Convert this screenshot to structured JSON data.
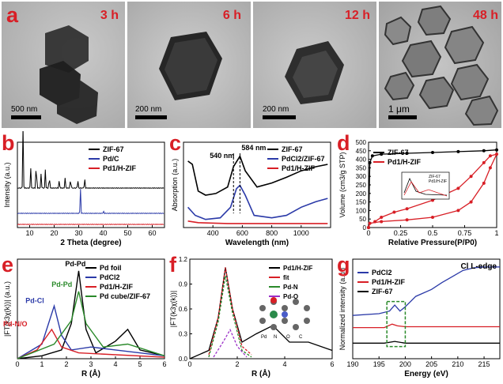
{
  "panels": {
    "a": {
      "label": "a",
      "images": [
        {
          "time": "3 h",
          "scale": "500 nm"
        },
        {
          "time": "6 h",
          "scale": "200 nm"
        },
        {
          "time": "12 h",
          "scale": "200 nm"
        },
        {
          "time": "48 h",
          "scale": "1 μm"
        }
      ]
    },
    "b": {
      "label": "b"
    },
    "c": {
      "label": "c"
    },
    "d": {
      "label": "d"
    },
    "e": {
      "label": "e"
    },
    "f": {
      "label": "f"
    },
    "g": {
      "label": "g"
    }
  },
  "colors": {
    "black": "#000000",
    "blue": "#2b3aa8",
    "red": "#d81f26",
    "green": "#2a8a2a",
    "purple": "#9b30c8",
    "label_red": "#d81f26"
  },
  "chart_data": [
    {
      "id": "b",
      "type": "line",
      "xlabel": "2 Theta (degree)",
      "ylabel": "Intensity (a.u.)",
      "xlim": [
        5,
        65
      ],
      "xticks": [
        10,
        20,
        30,
        40,
        50,
        60
      ],
      "legend": [
        "ZIF-67",
        "Pd/C",
        "Pd1/H-ZIF"
      ],
      "series": [
        {
          "name": "ZIF-67",
          "color": "#000000",
          "peaks": [
            [
              7.3,
              1.0
            ],
            [
              10.4,
              0.35
            ],
            [
              12.7,
              0.55
            ],
            [
              14.7,
              0.25
            ],
            [
              16.4,
              0.3
            ],
            [
              18.0,
              0.25
            ],
            [
              22.1,
              0.15
            ],
            [
              24.5,
              0.18
            ],
            [
              26.7,
              0.2
            ],
            [
              29.6,
              0.15
            ],
            [
              32.4,
              0.18
            ]
          ]
        },
        {
          "name": "Pd/C",
          "color": "#2b3aa8",
          "peaks": [
            [
              30.7,
              0.55
            ],
            [
              40.1,
              0.05
            ]
          ]
        },
        {
          "name": "Pd1/H-ZIF",
          "color": "#d81f26",
          "peaks": []
        }
      ]
    },
    {
      "id": "c",
      "type": "line",
      "xlabel": "Wavelength (nm)",
      "ylabel": "Absorption (a.u.)",
      "xlim": [
        200,
        1200
      ],
      "xticks": [
        400,
        600,
        800,
        1000
      ],
      "annotations": [
        "584 nm",
        "540 nm"
      ],
      "legend": [
        "ZIF-67",
        "PdCl2/ZIF-67",
        "Pd1/H-ZIF"
      ],
      "series": [
        {
          "name": "ZIF-67",
          "color": "#000000",
          "points": [
            [
              230,
              0.82
            ],
            [
              260,
              0.78
            ],
            [
              300,
              0.45
            ],
            [
              350,
              0.4
            ],
            [
              420,
              0.42
            ],
            [
              500,
              0.5
            ],
            [
              540,
              0.75
            ],
            [
              584,
              0.88
            ],
            [
              620,
              0.7
            ],
            [
              700,
              0.5
            ],
            [
              800,
              0.55
            ],
            [
              900,
              0.62
            ],
            [
              1000,
              0.7
            ],
            [
              1100,
              0.75
            ],
            [
              1180,
              0.78
            ]
          ]
        },
        {
          "name": "PdCl2/ZIF-67",
          "color": "#2b3aa8",
          "points": [
            [
              230,
              0.25
            ],
            [
              280,
              0.15
            ],
            [
              350,
              0.1
            ],
            [
              450,
              0.12
            ],
            [
              520,
              0.25
            ],
            [
              560,
              0.48
            ],
            [
              584,
              0.52
            ],
            [
              620,
              0.4
            ],
            [
              680,
              0.15
            ],
            [
              800,
              0.12
            ],
            [
              900,
              0.15
            ],
            [
              1000,
              0.25
            ],
            [
              1100,
              0.32
            ],
            [
              1180,
              0.36
            ]
          ]
        },
        {
          "name": "Pd1/H-ZIF",
          "color": "#d81f26",
          "points": [
            [
              230,
              0.08
            ],
            [
              300,
              0.06
            ],
            [
              500,
              0.05
            ],
            [
              800,
              0.05
            ],
            [
              1180,
              0.05
            ]
          ]
        }
      ]
    },
    {
      "id": "d",
      "type": "line",
      "xlabel": "Relative Pressure(P/P0)",
      "ylabel": "Volume (cm3/g STP)",
      "xlim": [
        0,
        1.0
      ],
      "ylim": [
        0,
        500
      ],
      "xticks": [
        0.0,
        0.25,
        0.5,
        0.75,
        1.0
      ],
      "yticks": [
        0,
        50,
        100,
        150,
        200,
        250,
        300,
        350,
        400,
        450,
        500
      ],
      "legend": [
        "ZIF-67",
        "Pd1/H-ZIF"
      ],
      "series": [
        {
          "name": "ZIF-67",
          "color": "#000000",
          "points": [
            [
              0.0,
              0
            ],
            [
              0.01,
              380
            ],
            [
              0.03,
              420
            ],
            [
              0.1,
              430
            ],
            [
              0.3,
              435
            ],
            [
              0.5,
              440
            ],
            [
              0.7,
              445
            ],
            [
              0.9,
              450
            ],
            [
              1.0,
              455
            ]
          ]
        },
        {
          "name": "Pd1/H-ZIF",
          "color": "#d81f26",
          "points": [
            [
              0.0,
              0
            ],
            [
              0.01,
              25
            ],
            [
              0.1,
              35
            ],
            [
              0.3,
              45
            ],
            [
              0.5,
              60
            ],
            [
              0.7,
              100
            ],
            [
              0.8,
              150
            ],
            [
              0.9,
              260
            ],
            [
              0.95,
              350
            ],
            [
              1.0,
              430
            ],
            [
              0.95,
              420
            ],
            [
              0.9,
              380
            ],
            [
              0.8,
              300
            ],
            [
              0.7,
              230
            ],
            [
              0.5,
              160
            ],
            [
              0.3,
              110
            ],
            [
              0.2,
              90
            ],
            [
              0.1,
              60
            ],
            [
              0.05,
              35
            ]
          ]
        }
      ],
      "inset_legend": [
        "ZIF-67",
        "Pd1/H-ZIF"
      ]
    },
    {
      "id": "e",
      "type": "line",
      "xlabel": "R (Å)",
      "ylabel": "|FT(k3χ(k))| (a.u.)",
      "xlim": [
        0,
        6
      ],
      "xticks": [
        0,
        1,
        2,
        3,
        4,
        5,
        6
      ],
      "legend": [
        "Pd foil",
        "PdCl2",
        "Pd1/H-ZIF",
        "Pd cube/ZIF-67"
      ],
      "annotations": [
        "Pd-Pd",
        "Pd-Pd",
        "Pd-Cl",
        "Pd-N/O"
      ],
      "series": [
        {
          "name": "Pd foil",
          "color": "#000000",
          "points": [
            [
              0,
              0
            ],
            [
              1,
              0.1
            ],
            [
              1.8,
              0.3
            ],
            [
              2.2,
              1.2
            ],
            [
              2.5,
              3.0
            ],
            [
              2.8,
              1.0
            ],
            [
              3.2,
              0.2
            ],
            [
              4.0,
              0.6
            ],
            [
              4.5,
              1.0
            ],
            [
              5.0,
              0.3
            ],
            [
              6,
              0.1
            ]
          ]
        },
        {
          "name": "PdCl2",
          "color": "#2b3aa8",
          "points": [
            [
              0,
              0
            ],
            [
              1.0,
              0.5
            ],
            [
              1.5,
              1.8
            ],
            [
              1.8,
              0.8
            ],
            [
              2.2,
              0.3
            ],
            [
              3.0,
              0.4
            ],
            [
              4.0,
              0.3
            ],
            [
              6,
              0.1
            ]
          ]
        },
        {
          "name": "Pd1/H-ZIF",
          "color": "#d81f26",
          "points": [
            [
              0,
              0
            ],
            [
              0.8,
              0.3
            ],
            [
              1.4,
              1.0
            ],
            [
              1.8,
              0.4
            ],
            [
              2.5,
              0.2
            ],
            [
              6,
              0.05
            ]
          ]
        },
        {
          "name": "Pd cube/ZIF-67",
          "color": "#2a8a2a",
          "points": [
            [
              0,
              0
            ],
            [
              1.5,
              0.5
            ],
            [
              2.2,
              1.3
            ],
            [
              2.5,
              2.3
            ],
            [
              2.8,
              1.2
            ],
            [
              3.5,
              0.4
            ],
            [
              4.5,
              0.5
            ],
            [
              6,
              0.1
            ]
          ]
        }
      ]
    },
    {
      "id": "f",
      "type": "line",
      "xlabel": "R (Å)",
      "ylabel": "|FT(k3χ(k))|",
      "xlim": [
        0,
        6
      ],
      "ylim": [
        0,
        1.2
      ],
      "xticks": [
        0,
        2,
        4,
        6
      ],
      "yticks": [
        0.0,
        0.3,
        0.6,
        0.9,
        1.2
      ],
      "legend": [
        "Pd1/H-ZIF",
        "fit",
        "Pd-N",
        "Pd-O"
      ],
      "structure_legend": [
        "Pd",
        "N",
        "O",
        "C"
      ],
      "series": [
        {
          "name": "Pd1/H-ZIF",
          "color": "#000000",
          "points": [
            [
              0,
              0
            ],
            [
              0.8,
              0.1
            ],
            [
              1.2,
              0.5
            ],
            [
              1.5,
              1.1
            ],
            [
              1.8,
              0.6
            ],
            [
              2.2,
              0.2
            ],
            [
              2.8,
              0.3
            ],
            [
              3.5,
              0.4
            ],
            [
              4.2,
              0.2
            ],
            [
              5.0,
              0.2
            ],
            [
              6,
              0.1
            ]
          ]
        },
        {
          "name": "fit",
          "color": "#d81f26",
          "points": [
            [
              0.8,
              0.05
            ],
            [
              1.2,
              0.5
            ],
            [
              1.5,
              1.1
            ],
            [
              1.8,
              0.6
            ],
            [
              2.2,
              0.15
            ],
            [
              2.6,
              0.05
            ]
          ]
        },
        {
          "name": "Pd-N",
          "color": "#2a8a2a",
          "points": [
            [
              0.8,
              0.02
            ],
            [
              1.2,
              0.45
            ],
            [
              1.5,
              1.0
            ],
            [
              1.8,
              0.55
            ],
            [
              2.2,
              0.1
            ],
            [
              2.6,
              0.02
            ]
          ]
        },
        {
          "name": "Pd-O",
          "color": "#9b30c8",
          "points": [
            [
              1.0,
              0.02
            ],
            [
              1.4,
              0.2
            ],
            [
              1.7,
              0.35
            ],
            [
              2.0,
              0.15
            ],
            [
              2.4,
              0.02
            ]
          ]
        }
      ]
    },
    {
      "id": "g",
      "type": "line",
      "title": "Cl L-edge",
      "xlabel": "Energy (eV)",
      "ylabel": "Normalized intensity (a.u.)",
      "xlim": [
        190,
        218
      ],
      "xticks": [
        190,
        195,
        200,
        205,
        210,
        215
      ],
      "legend": [
        "PdCl2",
        "Pd1/H-ZIF",
        "ZIF-67"
      ],
      "series": [
        {
          "name": "PdCl2",
          "color": "#2b3aa8",
          "points": [
            [
              190,
              0.5
            ],
            [
              195,
              0.52
            ],
            [
              197,
              0.55
            ],
            [
              198,
              0.62
            ],
            [
              199,
              0.55
            ],
            [
              200,
              0.6
            ],
            [
              202,
              0.72
            ],
            [
              205,
              0.8
            ],
            [
              207,
              0.88
            ],
            [
              209,
              0.95
            ],
            [
              211,
              1.02
            ],
            [
              213,
              1.05
            ],
            [
              215,
              1.06
            ],
            [
              218,
              1.06
            ]
          ]
        },
        {
          "name": "Pd1/H-ZIF",
          "color": "#d81f26",
          "points": [
            [
              190,
              0.36
            ],
            [
              196,
              0.36
            ],
            [
              197.5,
              0.4
            ],
            [
              198.5,
              0.38
            ],
            [
              200,
              0.37
            ],
            [
              210,
              0.37
            ],
            [
              218,
              0.37
            ]
          ]
        },
        {
          "name": "ZIF-67",
          "color": "#000000",
          "points": [
            [
              190,
              0.18
            ],
            [
              196,
              0.18
            ],
            [
              198,
              0.2
            ],
            [
              200,
              0.18
            ],
            [
              218,
              0.18
            ]
          ]
        }
      ]
    }
  ]
}
